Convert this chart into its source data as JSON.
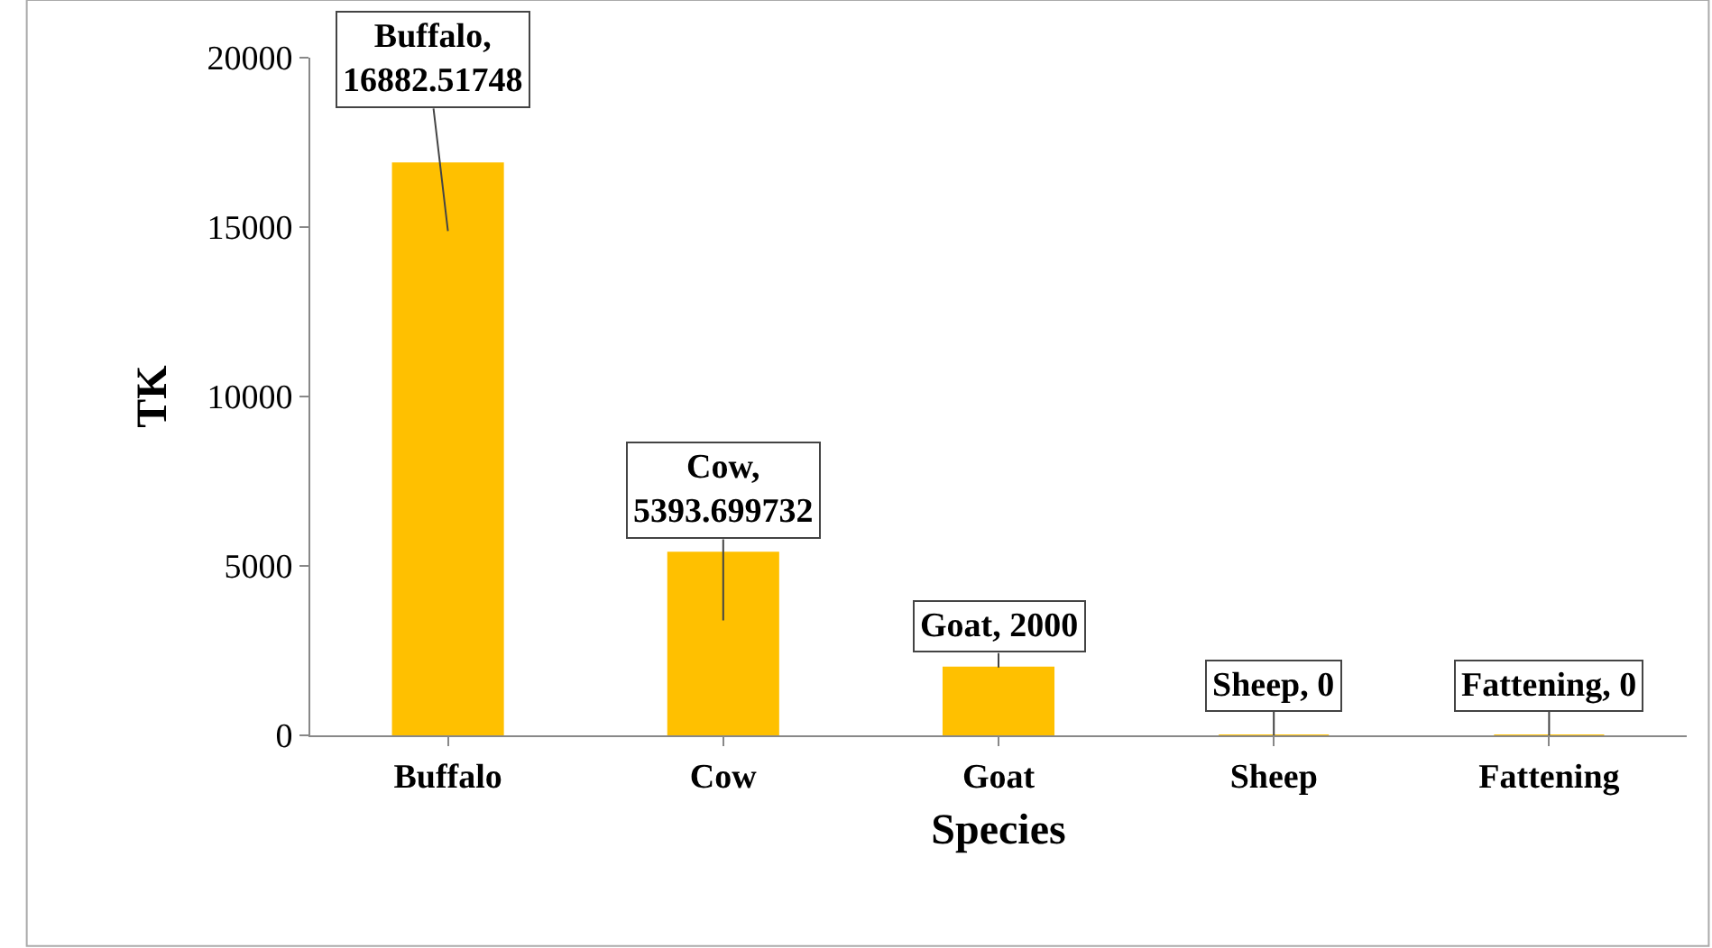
{
  "chart_data": {
    "type": "bar",
    "xlabel": "Species",
    "ylabel": "TK",
    "categories": [
      "Buffalo",
      "Cow",
      "Goat",
      "Sheep",
      "Fattening"
    ],
    "values": [
      16882.51748,
      5393.699732,
      2000,
      0,
      0
    ],
    "value_labels": [
      "Buffalo,\n16882.51748",
      "Cow,\n5393.699732",
      "Goat, 2000",
      "Sheep, 0",
      "Fattening, 0"
    ],
    "color": "#ffc000",
    "ylim": [
      0,
      20000
    ],
    "yticks": [
      0,
      5000,
      10000,
      15000,
      20000
    ],
    "legend": false
  }
}
